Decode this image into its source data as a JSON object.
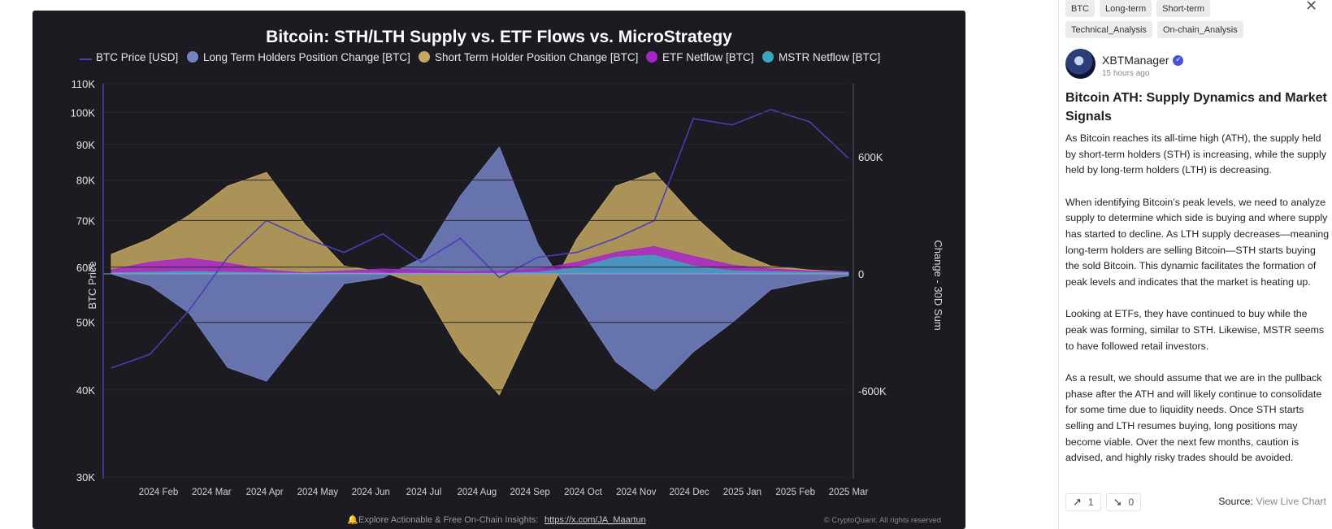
{
  "chart": {
    "title": "Bitcoin: STH/LTH Supply vs. ETF Flows vs. MicroStrategy",
    "footer_text": "Explore Actionable & Free On-Chain Insights:",
    "footer_link": "https://x.com/JA_Maartun",
    "copyright": "© CryptoQuant. All rights reserved"
  },
  "chart_data": {
    "type": "area",
    "title": "Bitcoin: STH/LTH Supply vs. ETF Flows vs. MicroStrategy",
    "ylabel_left": "BTC Price",
    "ylabel_right": "Change - 30D Sum",
    "y_left_ticks": [
      "110K",
      "100K",
      "90K",
      "80K",
      "70K",
      "60K",
      "50K",
      "40K",
      "30K"
    ],
    "y_left_values": [
      110000,
      100000,
      90000,
      80000,
      70000,
      60000,
      50000,
      40000,
      30000
    ],
    "y_left_scale": "log",
    "y_right_ticks": [
      "600K",
      "0",
      "-600K"
    ],
    "y_right_values": [
      600000,
      0,
      -600000
    ],
    "x_ticks": [
      "2024 Feb",
      "2024 Mar",
      "2024 Apr",
      "2024 May",
      "2024 Jun",
      "2024 Jul",
      "2024 Aug",
      "2024 Sep",
      "2024 Oct",
      "2024 Nov",
      "2024 Dec",
      "2025 Jan",
      "2025 Feb",
      "2025 Mar"
    ],
    "legend_position": "top",
    "series": [
      {
        "name": "BTC Price [USD]",
        "color": "#4b3fb8",
        "axis": "left",
        "values": [
          43000,
          45000,
          52000,
          62000,
          70000,
          66000,
          63000,
          67000,
          61000,
          66000,
          58000,
          62000,
          63000,
          66000,
          70000,
          98000,
          96000,
          101000,
          97000,
          86000
        ]
      },
      {
        "name": "Long Term Holders Position Change [BTC]",
        "color": "#7483c4",
        "axis": "right",
        "values": [
          0,
          -60000,
          -200000,
          -480000,
          -550000,
          -300000,
          -50000,
          -20000,
          80000,
          400000,
          650000,
          150000,
          -150000,
          -450000,
          -600000,
          -400000,
          -250000,
          -80000,
          -40000,
          -10000
        ]
      },
      {
        "name": "Short Term Holder Position Change [BTC]",
        "color": "#c4a860",
        "axis": "right",
        "values": [
          100000,
          180000,
          300000,
          450000,
          520000,
          250000,
          40000,
          10000,
          -60000,
          -400000,
          -620000,
          -200000,
          180000,
          450000,
          520000,
          300000,
          120000,
          40000,
          20000,
          10000
        ]
      },
      {
        "name": "ETF Netflow [BTC]",
        "color": "#a826c9",
        "axis": "right",
        "values": [
          20000,
          60000,
          80000,
          55000,
          20000,
          5000,
          15000,
          25000,
          20000,
          10000,
          15000,
          25000,
          60000,
          110000,
          140000,
          90000,
          45000,
          25000,
          15000,
          10000
        ]
      },
      {
        "name": "MSTR Netflow [BTC]",
        "color": "#3aa6c0",
        "axis": "right",
        "values": [
          5000,
          8000,
          12000,
          8000,
          5000,
          3000,
          4000,
          3000,
          3000,
          2000,
          3000,
          8000,
          30000,
          85000,
          95000,
          40000,
          15000,
          10000,
          8000,
          5000
        ]
      }
    ]
  },
  "panel": {
    "tags": [
      "BTC",
      "Long-term",
      "Short-term",
      "Technical_Analysis",
      "On-chain_Analysis"
    ],
    "author": "XBTManager",
    "time": "15 hours ago",
    "title": "Bitcoin ATH: Supply Dynamics and Market Signals",
    "paragraphs": [
      "As Bitcoin reaches its all-time high (ATH), the supply held by short-term holders (STH) is increasing, while the supply held by long-term holders (LTH) is decreasing.",
      "When identifying Bitcoin’s peak levels, we need to analyze supply to determine which side is buying and where supply has started to decline. As LTH supply decreases—meaning long-term holders are selling Bitcoin—STH starts buying the sold Bitcoin. This dynamic facilitates the formation of peak levels and indicates that the market is heating up.",
      "Looking at ETFs, they have continued to buy while the peak was forming, similar to STH. Likewise, MSTR seems to have followed retail investors.",
      "As a result, we should assume that we are in the pullback phase after the ATH and will likely continue to consolidate for some time due to liquidity needs. Once STH starts selling and LTH resumes buying, long positions may become viable. Over the next few months, caution is advised, and highly risky trades should be avoided."
    ],
    "boost_count": "1",
    "down_count": "0",
    "source_label": "Source:",
    "source_link": "View Live Chart",
    "colors": {
      "verified": "#4a52d6",
      "tag_bg": "#ececef"
    },
    "icons": {
      "close": "close-icon",
      "boost": "trend-up-icon",
      "down": "trend-down-icon",
      "verified": "verified-check-icon"
    }
  }
}
